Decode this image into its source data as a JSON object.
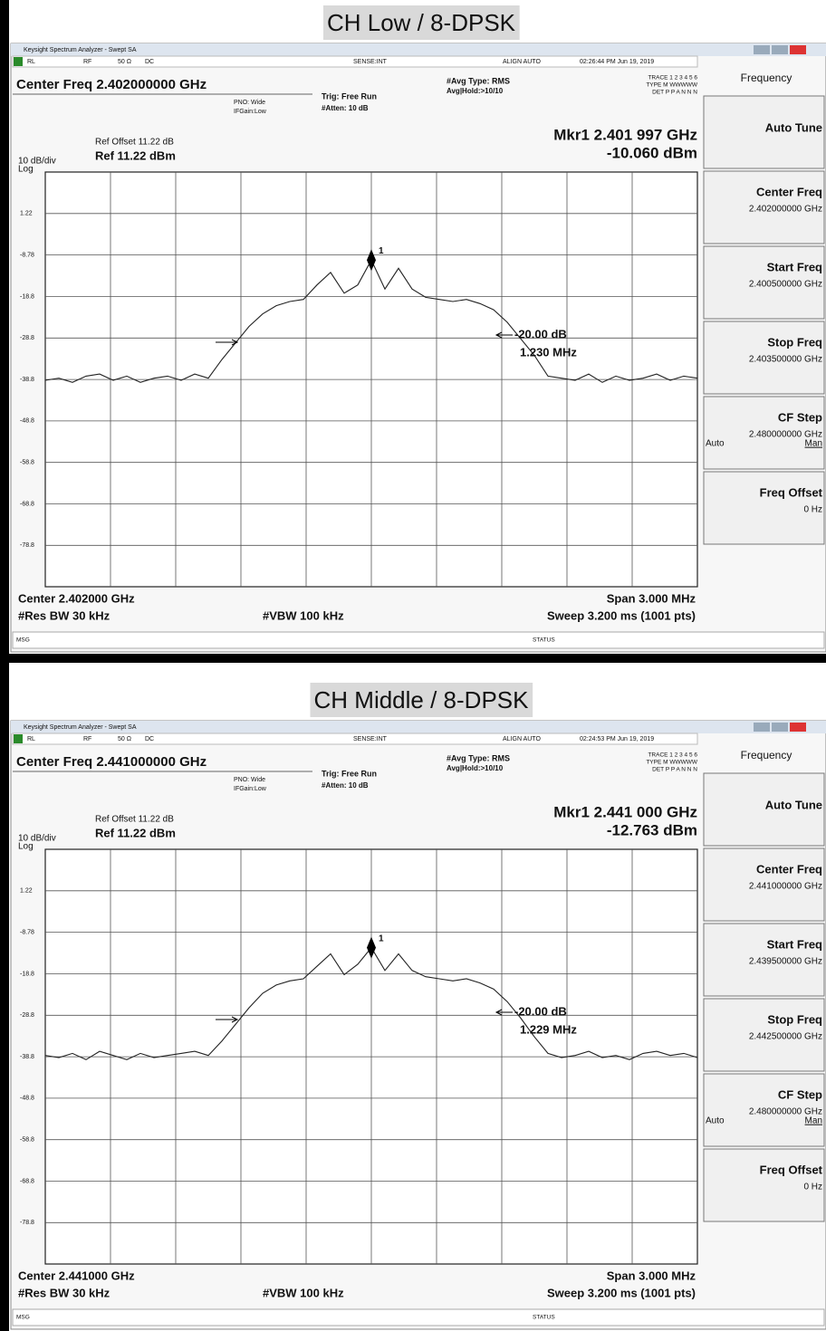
{
  "panels": [
    {
      "title": "CH Low / 8-DPSK",
      "window_title": "Keysight Spectrum Analyzer - Swept SA",
      "status": [
        "RL",
        "RF",
        "50 Ω",
        "DC",
        "SENSE:INT",
        "ALIGN AUTO",
        "02:26:44 PM Jun 19, 2019"
      ],
      "center_freq": "Center Freq 2.402000000 GHz",
      "pno": "PNO: Wide",
      "ifgain": "IFGain:Low",
      "trig": "Trig: Free Run",
      "atten": "#Atten: 10 dB",
      "avg_type": "#Avg Type: RMS",
      "avg_hold": "Avg|Hold:>10/10",
      "trace_info": [
        "TRACE 1 2 3 4 5 6",
        "TYPE M WWWWW",
        "DET P P A N N N"
      ],
      "marker_freq": "Mkr1 2.401 997 GHz",
      "marker_amp": "-10.060 dBm",
      "marker_id": "1",
      "ref_offset": "Ref Offset 11.22 dB",
      "ref_level": "Ref 11.22 dBm",
      "scale": "10 dB/div",
      "scale_type": "Log",
      "ylim": [
        -88.78,
        11.22
      ],
      "yticks": [
        1.22,
        -8.78,
        -18.8,
        -28.8,
        -38.8,
        -48.8,
        -58.8,
        -68.8,
        -78.8
      ],
      "trace": [
        -39,
        -38.5,
        -39.5,
        -38,
        -37.5,
        -39,
        -38,
        -39.5,
        -38.5,
        -38,
        -39,
        -37.5,
        -38.5,
        -34,
        -30,
        -26,
        -23,
        -21,
        -20,
        -19.5,
        -16,
        -13,
        -18,
        -16,
        -10,
        -17,
        -12,
        -17,
        -19,
        -19.5,
        -20,
        -19.5,
        -20.5,
        -22,
        -25,
        -29,
        -33,
        -38,
        -38.5,
        -39,
        -37.5,
        -39.5,
        -38,
        -39,
        -38.5,
        -37.5,
        -39,
        -38,
        -38.5
      ],
      "delta_label": "-20.00 dB",
      "bandwidth": "1.230 MHz",
      "center": "Center 2.402000 GHz",
      "span": "Span 3.000 MHz",
      "rbw": "#Res BW 30 kHz",
      "vbw": "#VBW 100 kHz",
      "sweep": "Sweep  3.200 ms (1001 pts)",
      "msg": "MSG",
      "status_bar": "STATUS",
      "menu": "Frequency",
      "softkeys": [
        {
          "label": "Auto Tune"
        },
        {
          "label": "Center Freq",
          "value": "2.402000000 GHz"
        },
        {
          "label": "Start Freq",
          "value": "2.400500000 GHz"
        },
        {
          "label": "Stop Freq",
          "value": "2.403500000 GHz"
        },
        {
          "label": "CF Step",
          "value": "2.480000000 GHz",
          "mode": "Auto",
          "option": "Man"
        },
        {
          "label": "Freq Offset",
          "value": "0 Hz"
        }
      ]
    },
    {
      "title": "CH Middle / 8-DPSK",
      "window_title": "Keysight Spectrum Analyzer - Swept SA",
      "status": [
        "RL",
        "RF",
        "50 Ω",
        "DC",
        "SENSE:INT",
        "ALIGN AUTO",
        "02:24:53 PM Jun 19, 2019"
      ],
      "center_freq": "Center Freq 2.441000000 GHz",
      "pno": "PNO: Wide",
      "ifgain": "IFGain:Low",
      "trig": "Trig: Free Run",
      "atten": "#Atten: 10 dB",
      "avg_type": "#Avg Type: RMS",
      "avg_hold": "Avg|Hold:>10/10",
      "trace_info": [
        "TRACE 1 2 3 4 5 6",
        "TYPE M WWWWW",
        "DET P P A N N N"
      ],
      "marker_freq": "Mkr1 2.441 000 GHz",
      "marker_amp": "-12.763 dBm",
      "marker_id": "1",
      "ref_offset": "Ref Offset 11.22 dB",
      "ref_level": "Ref 11.22 dBm",
      "scale": "10 dB/div",
      "scale_type": "Log",
      "ylim": [
        -88.78,
        11.22
      ],
      "yticks": [
        1.22,
        -8.78,
        -18.8,
        -28.8,
        -38.8,
        -48.8,
        -58.8,
        -68.8,
        -78.8
      ],
      "trace": [
        -38.5,
        -39,
        -38,
        -39.5,
        -37.5,
        -38.5,
        -39.5,
        -38,
        -39,
        -38.5,
        -38,
        -37.5,
        -38.5,
        -35,
        -31,
        -27,
        -23.5,
        -21.5,
        -20.5,
        -20,
        -17,
        -14,
        -19,
        -16.5,
        -12.5,
        -18,
        -14,
        -18,
        -19.5,
        -20,
        -20.5,
        -20,
        -21,
        -22.5,
        -25.5,
        -29.5,
        -34,
        -38,
        -39,
        -38.5,
        -37.5,
        -39,
        -38.5,
        -39.5,
        -38,
        -37.5,
        -38.5,
        -38,
        -39
      ],
      "delta_label": "-20.00 dB",
      "bandwidth": "1.229 MHz",
      "center": "Center 2.441000 GHz",
      "span": "Span 3.000 MHz",
      "rbw": "#Res BW 30 kHz",
      "vbw": "#VBW 100 kHz",
      "sweep": "Sweep  3.200 ms (1001 pts)",
      "msg": "MSG",
      "status_bar": "STATUS",
      "menu": "Frequency",
      "softkeys": [
        {
          "label": "Auto Tune"
        },
        {
          "label": "Center Freq",
          "value": "2.441000000 GHz"
        },
        {
          "label": "Start Freq",
          "value": "2.439500000 GHz"
        },
        {
          "label": "Stop Freq",
          "value": "2.442500000 GHz"
        },
        {
          "label": "CF Step",
          "value": "2.480000000 GHz",
          "mode": "Auto",
          "option": "Man"
        },
        {
          "label": "Freq Offset",
          "value": "0 Hz"
        }
      ]
    }
  ]
}
